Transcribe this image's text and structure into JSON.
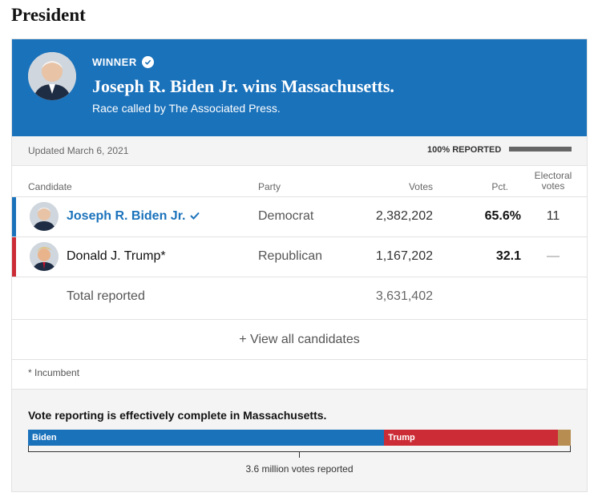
{
  "section_title": "President",
  "banner": {
    "winner_label": "WINNER",
    "headline": "Joseph R. Biden Jr. wins Massachusetts.",
    "subline": "Race called by The Associated Press.",
    "color": "#1a72bb"
  },
  "status": {
    "updated": "Updated March 6, 2021",
    "reported_label": "100% REPORTED",
    "reported_fraction": 1.0
  },
  "table": {
    "headers": {
      "candidate": "Candidate",
      "party": "Party",
      "votes": "Votes",
      "pct": "Pct.",
      "electoral": "Electoral votes"
    },
    "rows": [
      {
        "name": "Joseph R. Biden Jr.",
        "party": "Democrat",
        "votes": "2,382,202",
        "pct": "65.6%",
        "electoral": "11",
        "winner": true,
        "color": "#1a72bb"
      },
      {
        "name": "Donald J. Trump*",
        "party": "Republican",
        "votes": "1,167,202",
        "pct": "32.1",
        "electoral": "—",
        "winner": false,
        "color": "#cc2c35"
      }
    ],
    "total_label": "Total reported",
    "total_votes": "3,631,402"
  },
  "view_all_label": "+ View all candidates",
  "incumbent_note": "* Incumbent",
  "summary": {
    "text": "Vote reporting is effectively complete in Massachusetts.",
    "bar": [
      {
        "label": "Biden",
        "pct": 65.6,
        "color": "#1a72bb"
      },
      {
        "label": "Trump",
        "pct": 32.1,
        "color": "#cc2c35"
      },
      {
        "label": "",
        "pct": 2.3,
        "color": "#b78d52"
      }
    ],
    "votes_reported": "3.6 million votes reported"
  }
}
